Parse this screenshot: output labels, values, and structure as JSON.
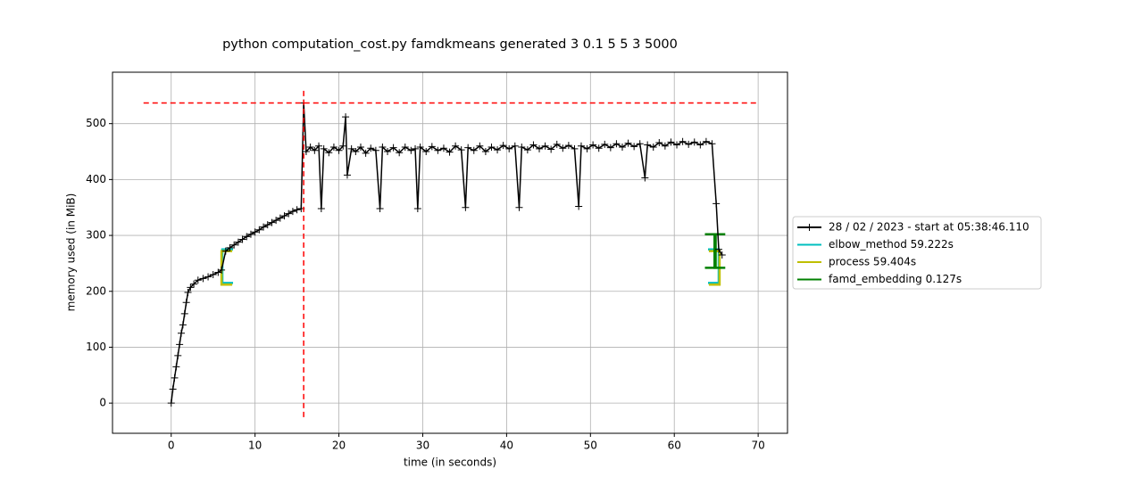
{
  "chart_data": {
    "type": "line",
    "title": "python computation_cost.py famdkmeans generated 3 0.1 5 5 3 5000",
    "xlabel": "time (in seconds)",
    "ylabel": "memory used (in MiB)",
    "xlim": [
      -7.0,
      73.5
    ],
    "ylim": [
      -54,
      592
    ],
    "xticks": [
      0,
      10,
      20,
      30,
      40,
      50,
      60,
      70
    ],
    "yticks": [
      0,
      100,
      200,
      300,
      400,
      500
    ],
    "grid": true,
    "legend": "right",
    "series": [
      {
        "name": "28 / 02 / 2023 - start at 05:38:46.110",
        "color": "#000000",
        "x": [
          0,
          0.2,
          0.4,
          0.6,
          0.8,
          1.0,
          1.2,
          1.4,
          1.6,
          1.8,
          2.0,
          2.3,
          2.7,
          3.2,
          3.8,
          4.4,
          5.0,
          5.6,
          6.0,
          6.5,
          7.0,
          7.5,
          8.0,
          8.5,
          9.0,
          9.5,
          10.0,
          10.5,
          11.0,
          11.5,
          12.0,
          12.5,
          13.0,
          13.5,
          14.0,
          14.5,
          15.0,
          15.5,
          15.8,
          16.1,
          16.6,
          17.1,
          17.6,
          17.9,
          18.2,
          18.8,
          19.4,
          20.0,
          20.5,
          20.8,
          21.0,
          21.5,
          22.0,
          22.6,
          23.2,
          23.8,
          24.4,
          24.9,
          25.2,
          25.8,
          26.5,
          27.2,
          27.9,
          28.6,
          29.1,
          29.4,
          29.7,
          30.4,
          31.1,
          31.8,
          32.5,
          33.2,
          33.9,
          34.6,
          35.1,
          35.4,
          36.1,
          36.8,
          37.5,
          38.2,
          38.9,
          39.6,
          40.3,
          41.0,
          41.5,
          41.8,
          42.5,
          43.2,
          43.9,
          44.6,
          45.3,
          46.0,
          46.7,
          47.4,
          48.1,
          48.6,
          48.9,
          49.6,
          50.3,
          51.0,
          51.7,
          52.4,
          53.1,
          53.8,
          54.5,
          55.2,
          55.9,
          56.5,
          56.8,
          57.5,
          58.2,
          58.9,
          59.6,
          60.3,
          61.0,
          61.7,
          62.4,
          63.1,
          63.8,
          64.5,
          65.0,
          65.3,
          65.7
        ],
        "values": [
          0,
          25,
          45,
          65,
          85,
          105,
          125,
          140,
          160,
          180,
          198,
          207,
          213,
          220,
          223,
          226,
          230,
          234,
          238,
          272,
          278,
          283,
          288,
          293,
          298,
          302,
          306,
          310,
          315,
          319,
          323,
          327,
          331,
          335,
          339,
          343,
          346,
          348,
          537,
          450,
          458,
          452,
          460,
          348,
          455,
          448,
          458,
          452,
          460,
          512,
          408,
          455,
          450,
          458,
          447,
          456,
          452,
          348,
          458,
          450,
          457,
          448,
          458,
          452,
          455,
          348,
          458,
          450,
          459,
          452,
          456,
          449,
          460,
          453,
          350,
          457,
          452,
          460,
          450,
          458,
          453,
          461,
          455,
          460,
          350,
          458,
          453,
          462,
          455,
          460,
          454,
          463,
          456,
          461,
          455,
          352,
          460,
          455,
          462,
          456,
          463,
          457,
          464,
          458,
          465,
          459,
          464,
          403,
          462,
          458,
          466,
          460,
          467,
          462,
          468,
          463,
          467,
          462,
          468,
          464,
          357,
          275,
          265
        ]
      }
    ],
    "functions": [
      {
        "name": "elbow_method 59.222s",
        "color": "#00bfbf",
        "x": [
          6.1,
          65.3
        ],
        "y": [
          215,
          275
        ]
      },
      {
        "name": "process 59.404s",
        "color": "#bfbf00",
        "x": [
          6.0,
          65.4
        ],
        "y": [
          212,
          272
        ]
      },
      {
        "name": "famd_embedding 0.127s",
        "color": "#008000",
        "x": [
          64.8,
          64.93
        ],
        "y": [
          242,
          302
        ]
      }
    ],
    "reference_lines": {
      "color": "#ff0000",
      "hline": {
        "y": 537,
        "x": [
          -3.3,
          70
        ]
      },
      "vline": {
        "x": 15.8,
        "y": [
          -25,
          565
        ]
      }
    }
  }
}
